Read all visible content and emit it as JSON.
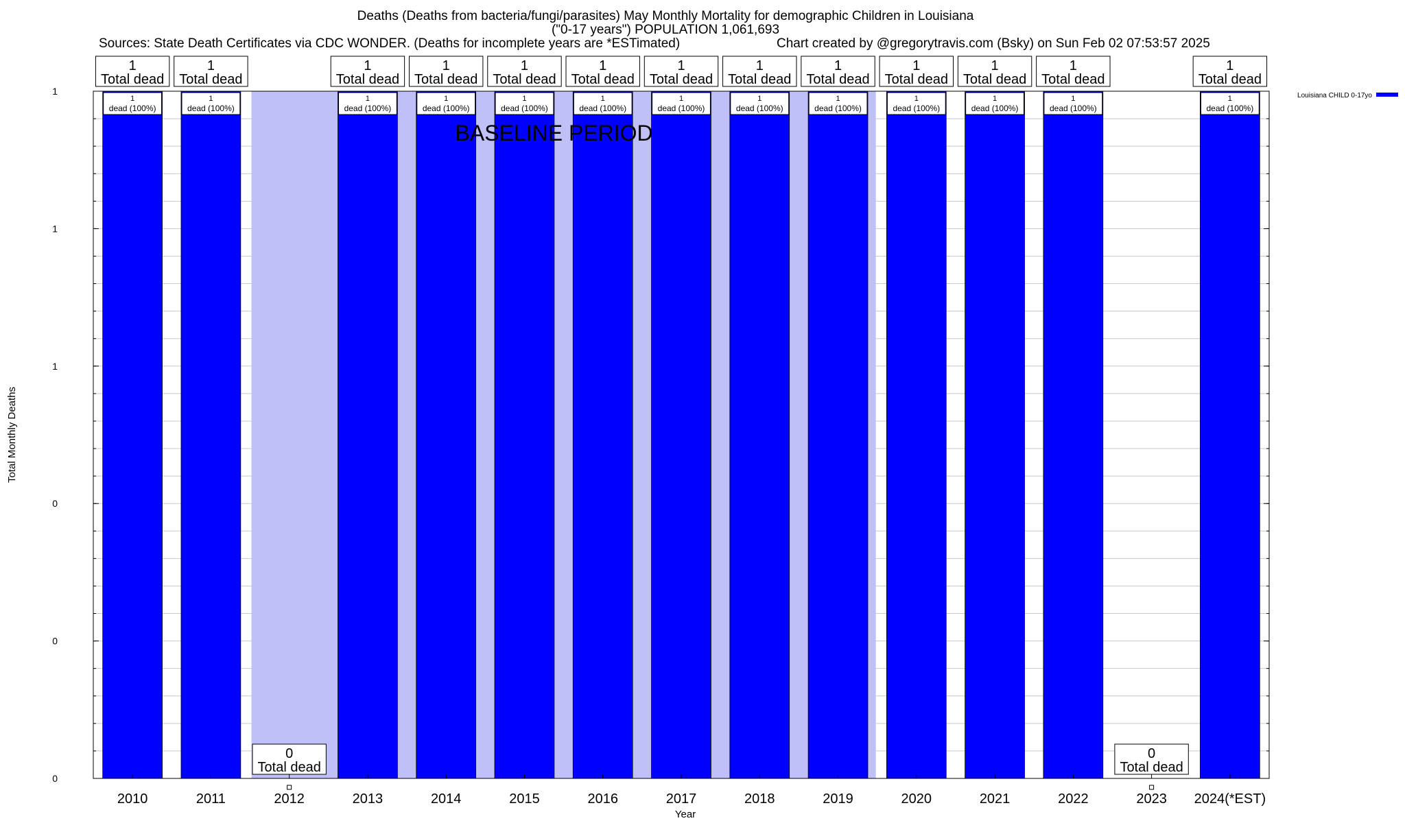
{
  "chart_data": {
    "type": "bar",
    "title": "Deaths (Deaths from bacteria/fungi/parasites) May Monthly Mortality for demographic Children in Louisiana",
    "subtitle": "(\"0-17 years\") POPULATION 1,061,693",
    "sources": "Sources: State Death Certificates via CDC WONDER. (Deaths for incomplete years are *ESTimated)",
    "credit": "Chart created by @gregorytravis.com (Bsky) on Sun Feb 02 07:53:57 2025",
    "xlabel": "Year",
    "ylabel": "Total Monthly Deaths",
    "ylim": [
      0,
      1
    ],
    "y_tick_values": [
      0,
      0.2,
      0.4,
      0.6,
      0.8,
      1.0
    ],
    "y_tick_labels": [
      "0",
      "0",
      "0",
      "1",
      "1",
      "1"
    ],
    "categories": [
      "2010",
      "2011",
      "2012",
      "2013",
      "2014",
      "2015",
      "2016",
      "2017",
      "2018",
      "2019",
      "2020",
      "2021",
      "2022",
      "2023",
      "2024(*EST)"
    ],
    "series": [
      {
        "name": "Louisiana CHILD 0-17yo",
        "color": "#0000ff",
        "values": [
          1,
          1,
          0,
          1,
          1,
          1,
          1,
          1,
          1,
          1,
          1,
          1,
          1,
          0,
          1
        ]
      }
    ],
    "total_labels": [
      "1",
      "1",
      "0",
      "1",
      "1",
      "1",
      "1",
      "1",
      "1",
      "1",
      "1",
      "1",
      "1",
      "0",
      "1"
    ],
    "total_label_suffix": "Total dead",
    "inner_label_suffix": "dead (100%)",
    "baseline_label": "BASELINE PERIOD",
    "baseline_range": [
      "2012",
      "2019"
    ],
    "baseline_color": "#c0c0f8"
  }
}
